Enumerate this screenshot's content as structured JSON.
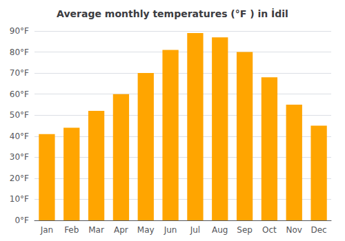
{
  "chart_data": {
    "type": "bar",
    "title": "Average monthly temperatures (°F ) in İdil",
    "categories": [
      "Jan",
      "Feb",
      "Mar",
      "Apr",
      "May",
      "Jun",
      "Jul",
      "Aug",
      "Sep",
      "Oct",
      "Nov",
      "Dec"
    ],
    "values": [
      41,
      44,
      52,
      60,
      70,
      81,
      89,
      87,
      80,
      68,
      55,
      45
    ],
    "color": "#FFA500",
    "ylim": [
      0,
      90
    ],
    "yticks": [
      {
        "value": 0,
        "label": "0°F"
      },
      {
        "value": 10,
        "label": "10°F"
      },
      {
        "value": 20,
        "label": "20°F"
      },
      {
        "value": 30,
        "label": "30°F"
      },
      {
        "value": 40,
        "label": "40°F"
      },
      {
        "value": 50,
        "label": "50°F"
      },
      {
        "value": 60,
        "label": "60°F"
      },
      {
        "value": 70,
        "label": "70°F"
      },
      {
        "value": 80,
        "label": "80°F"
      },
      {
        "value": 90,
        "label": "90°F"
      }
    ],
    "grid": true
  }
}
